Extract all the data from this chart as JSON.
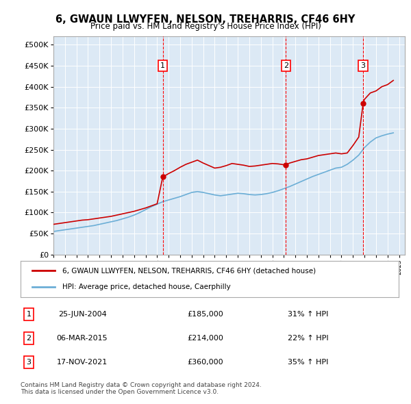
{
  "title": "6, GWAUN LLWYFEN, NELSON, TREHARRIS, CF46 6HY",
  "subtitle": "Price paid vs. HM Land Registry's House Price Index (HPI)",
  "bg_color": "#dce9f5",
  "plot_bg_color": "#dce9f5",
  "legend_label_red": "6, GWAUN LLWYFEN, NELSON, TREHARRIS, CF46 6HY (detached house)",
  "legend_label_blue": "HPI: Average price, detached house, Caerphilly",
  "footer": "Contains HM Land Registry data © Crown copyright and database right 2024.\nThis data is licensed under the Open Government Licence v3.0.",
  "transactions": [
    {
      "label": "1",
      "date": "25-JUN-2004",
      "price": "£185,000",
      "hpi": "31% ↑ HPI",
      "year": 2004.49
    },
    {
      "label": "2",
      "date": "06-MAR-2015",
      "price": "£214,000",
      "hpi": "22% ↑ HPI",
      "year": 2015.18
    },
    {
      "label": "3",
      "date": "17-NOV-2021",
      "price": "£360,000",
      "hpi": "35% ↑ HPI",
      "year": 2021.88
    }
  ],
  "xmin": 1995,
  "xmax": 2025.5,
  "ymin": 0,
  "ymax": 520000,
  "yticks": [
    0,
    50000,
    100000,
    150000,
    200000,
    250000,
    300000,
    350000,
    400000,
    450000,
    500000
  ],
  "red_line": {
    "years": [
      1995,
      1995.5,
      1996,
      1996.5,
      1997,
      1997.5,
      1998,
      1998.5,
      1999,
      1999.5,
      2000,
      2000.5,
      2001,
      2001.5,
      2002,
      2002.5,
      2003,
      2003.5,
      2004,
      2004.49,
      2004.5,
      2005,
      2005.5,
      2006,
      2006.5,
      2007,
      2007.5,
      2008,
      2008.5,
      2009,
      2009.5,
      2010,
      2010.5,
      2011,
      2011.5,
      2012,
      2012.5,
      2013,
      2013.5,
      2014,
      2014.5,
      2015,
      2015.18,
      2015.5,
      2016,
      2016.5,
      2017,
      2017.5,
      2018,
      2018.5,
      2019,
      2019.5,
      2020,
      2020.5,
      2021,
      2021.5,
      2021.88,
      2022,
      2022.5,
      2023,
      2023.5,
      2024,
      2024.5
    ],
    "values": [
      72000,
      74000,
      76000,
      78000,
      80000,
      82000,
      83000,
      85000,
      87000,
      89000,
      91000,
      94000,
      97000,
      100000,
      103000,
      107000,
      111000,
      116000,
      121000,
      185000,
      185000,
      193000,
      200000,
      208000,
      215000,
      220000,
      225000,
      218000,
      212000,
      206000,
      208000,
      212000,
      217000,
      215000,
      213000,
      210000,
      211000,
      213000,
      215000,
      217000,
      216000,
      214000,
      214000,
      218000,
      222000,
      226000,
      228000,
      232000,
      236000,
      238000,
      240000,
      242000,
      240000,
      242000,
      260000,
      280000,
      360000,
      370000,
      385000,
      390000,
      400000,
      405000,
      415000
    ]
  },
  "blue_line": {
    "years": [
      1995,
      1995.5,
      1996,
      1996.5,
      1997,
      1997.5,
      1998,
      1998.5,
      1999,
      1999.5,
      2000,
      2000.5,
      2001,
      2001.5,
      2002,
      2002.5,
      2003,
      2003.5,
      2004,
      2004.5,
      2005,
      2005.5,
      2006,
      2006.5,
      2007,
      2007.5,
      2008,
      2008.5,
      2009,
      2009.5,
      2010,
      2010.5,
      2011,
      2011.5,
      2012,
      2012.5,
      2013,
      2013.5,
      2014,
      2014.5,
      2015,
      2015.5,
      2016,
      2016.5,
      2017,
      2017.5,
      2018,
      2018.5,
      2019,
      2019.5,
      2020,
      2020.5,
      2021,
      2021.5,
      2022,
      2022.5,
      2023,
      2023.5,
      2024,
      2024.5
    ],
    "values": [
      55000,
      57000,
      59000,
      61000,
      63000,
      65000,
      67000,
      69000,
      72000,
      75000,
      78000,
      81000,
      85000,
      89000,
      94000,
      100000,
      107000,
      114000,
      120000,
      126000,
      130000,
      134000,
      138000,
      143000,
      148000,
      150000,
      148000,
      145000,
      142000,
      140000,
      142000,
      144000,
      146000,
      145000,
      143000,
      142000,
      143000,
      145000,
      148000,
      152000,
      157000,
      162000,
      168000,
      174000,
      180000,
      186000,
      191000,
      196000,
      201000,
      206000,
      208000,
      215000,
      225000,
      237000,
      255000,
      268000,
      278000,
      283000,
      287000,
      290000
    ]
  }
}
